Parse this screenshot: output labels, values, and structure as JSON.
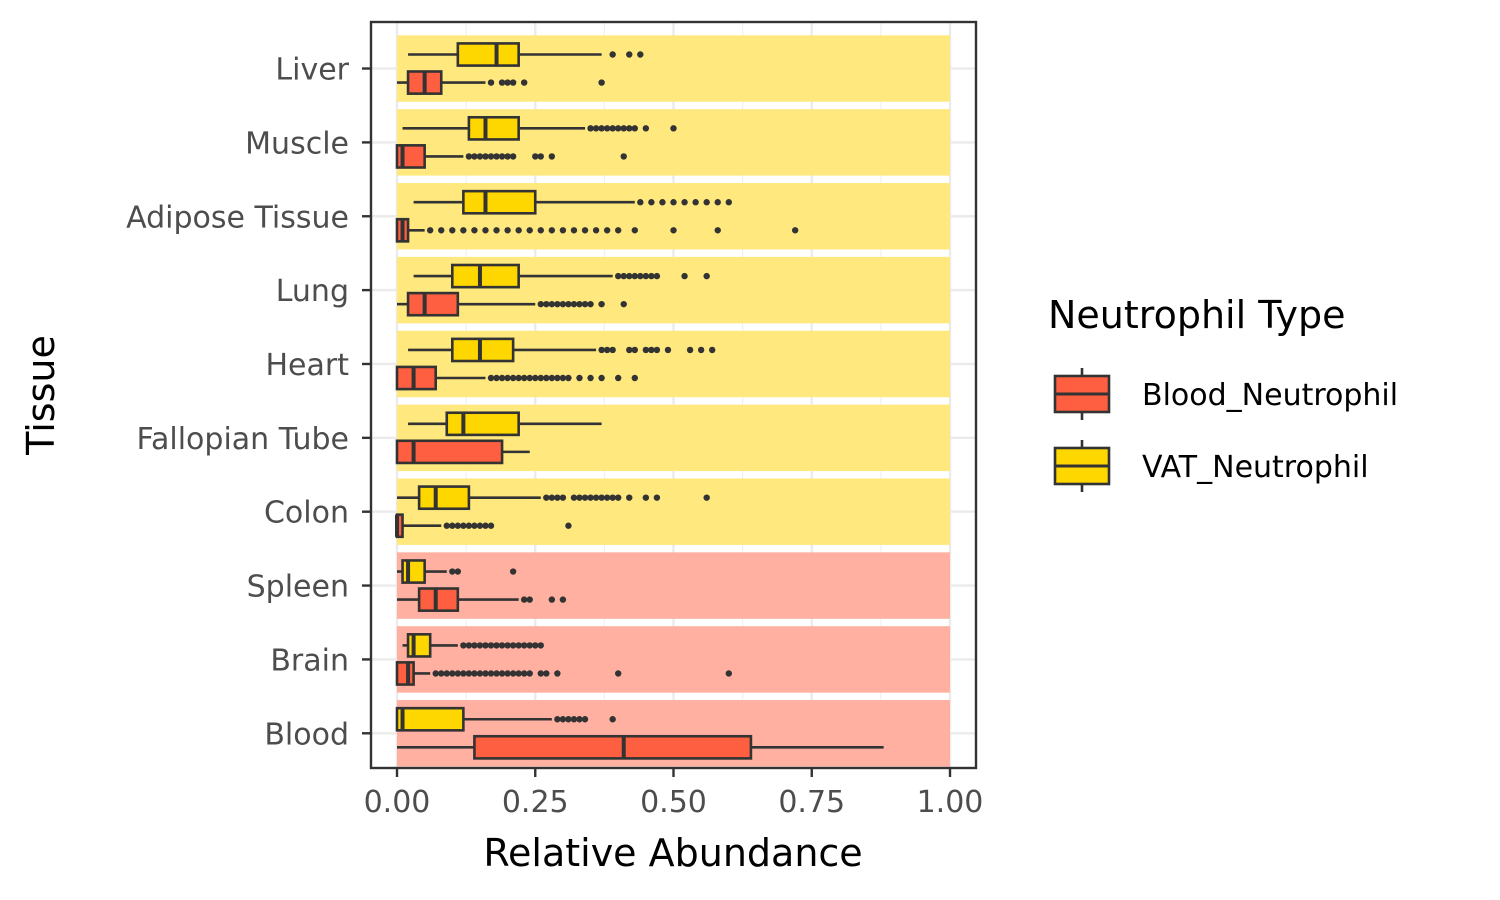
{
  "chart_data": {
    "type": "boxplot",
    "orientation": "horizontal",
    "xlabel": "Relative Abundance",
    "ylabel": "Tissue",
    "xlim": [
      0,
      1
    ],
    "xticks": [
      0,
      0.25,
      0.5,
      0.75,
      1
    ],
    "xtick_labels": [
      "0.00",
      "0.25",
      "0.50",
      "0.75",
      "1.00"
    ],
    "categories": [
      "Liver",
      "Muscle",
      "Adipose Tissue",
      "Lung",
      "Heart",
      "Fallopian Tube",
      "Colon",
      "Spleen",
      "Brain",
      "Blood"
    ],
    "category_band": [
      "VAT_Neutrophil",
      "VAT_Neutrophil",
      "VAT_Neutrophil",
      "VAT_Neutrophil",
      "VAT_Neutrophil",
      "VAT_Neutrophil",
      "VAT_Neutrophil",
      "Blood_Neutrophil",
      "Blood_Neutrophil",
      "Blood_Neutrophil"
    ],
    "band_x_range": [
      0,
      1
    ],
    "grid": true,
    "legend": {
      "title": "Neutrophil Type",
      "position": "right",
      "entries": [
        "Blood_Neutrophil",
        "VAT_Neutrophil"
      ]
    },
    "colors": {
      "Blood_Neutrophil": "#FF5F41",
      "VAT_Neutrophil": "#FFD700",
      "band_Blood_Neutrophil": "#FFB0A1",
      "band_VAT_Neutrophil": "#FFE97F"
    },
    "series": [
      {
        "name": "VAT_Neutrophil",
        "boxes": [
          {
            "category": "Liver",
            "whisker_low": 0.02,
            "q1": 0.11,
            "median": 0.18,
            "q3": 0.22,
            "whisker_high": 0.37,
            "outliers": [
              0.39,
              0.42,
              0.44
            ]
          },
          {
            "category": "Muscle",
            "whisker_low": 0.01,
            "q1": 0.13,
            "median": 0.16,
            "q3": 0.22,
            "whisker_high": 0.34,
            "outliers": [
              0.35,
              0.36,
              0.37,
              0.38,
              0.39,
              0.4,
              0.41,
              0.42,
              0.43,
              0.45,
              0.5
            ]
          },
          {
            "category": "Adipose Tissue",
            "whisker_low": 0.03,
            "q1": 0.12,
            "median": 0.16,
            "q3": 0.25,
            "whisker_high": 0.43,
            "outliers": [
              0.44,
              0.46,
              0.48,
              0.5,
              0.52,
              0.54,
              0.56,
              0.58,
              0.6
            ]
          },
          {
            "category": "Lung",
            "whisker_low": 0.03,
            "q1": 0.1,
            "median": 0.15,
            "q3": 0.22,
            "whisker_high": 0.39,
            "outliers": [
              0.4,
              0.41,
              0.42,
              0.43,
              0.44,
              0.45,
              0.46,
              0.47,
              0.52,
              0.56
            ]
          },
          {
            "category": "Heart",
            "whisker_low": 0.02,
            "q1": 0.1,
            "median": 0.15,
            "q3": 0.21,
            "whisker_high": 0.36,
            "outliers": [
              0.37,
              0.38,
              0.39,
              0.42,
              0.43,
              0.45,
              0.46,
              0.47,
              0.49,
              0.53,
              0.55,
              0.57
            ]
          },
          {
            "category": "Fallopian Tube",
            "whisker_low": 0.02,
            "q1": 0.09,
            "median": 0.12,
            "q3": 0.22,
            "whisker_high": 0.37,
            "outliers": []
          },
          {
            "category": "Colon",
            "whisker_low": 0.0,
            "q1": 0.04,
            "median": 0.07,
            "q3": 0.13,
            "whisker_high": 0.26,
            "outliers": [
              0.27,
              0.28,
              0.29,
              0.3,
              0.32,
              0.33,
              0.34,
              0.35,
              0.36,
              0.37,
              0.38,
              0.39,
              0.4,
              0.42,
              0.45,
              0.47,
              0.56
            ]
          },
          {
            "category": "Spleen",
            "whisker_low": 0.0,
            "q1": 0.01,
            "median": 0.02,
            "q3": 0.05,
            "whisker_high": 0.09,
            "outliers": [
              0.1,
              0.11,
              0.21
            ]
          },
          {
            "category": "Brain",
            "whisker_low": 0.01,
            "q1": 0.02,
            "median": 0.03,
            "q3": 0.06,
            "whisker_high": 0.11,
            "outliers": [
              0.12,
              0.13,
              0.14,
              0.15,
              0.16,
              0.17,
              0.18,
              0.19,
              0.2,
              0.21,
              0.22,
              0.23,
              0.24,
              0.25,
              0.26
            ]
          },
          {
            "category": "Blood",
            "whisker_low": 0.0,
            "q1": 0.0,
            "median": 0.01,
            "q3": 0.12,
            "whisker_high": 0.28,
            "outliers": [
              0.29,
              0.3,
              0.31,
              0.32,
              0.33,
              0.34,
              0.39
            ]
          }
        ]
      },
      {
        "name": "Blood_Neutrophil",
        "boxes": [
          {
            "category": "Liver",
            "whisker_low": 0.0,
            "q1": 0.02,
            "median": 0.05,
            "q3": 0.08,
            "whisker_high": 0.16,
            "outliers": [
              0.17,
              0.19,
              0.2,
              0.21,
              0.23,
              0.37
            ]
          },
          {
            "category": "Muscle",
            "whisker_low": 0.0,
            "q1": 0.0,
            "median": 0.01,
            "q3": 0.05,
            "whisker_high": 0.12,
            "outliers": [
              0.13,
              0.14,
              0.15,
              0.16,
              0.17,
              0.18,
              0.19,
              0.2,
              0.21,
              0.25,
              0.26,
              0.28,
              0.41
            ]
          },
          {
            "category": "Adipose Tissue",
            "whisker_low": 0.0,
            "q1": 0.0,
            "median": 0.01,
            "q3": 0.02,
            "whisker_high": 0.05,
            "outliers": [
              0.06,
              0.08,
              0.1,
              0.12,
              0.14,
              0.16,
              0.18,
              0.2,
              0.22,
              0.24,
              0.26,
              0.28,
              0.3,
              0.32,
              0.34,
              0.36,
              0.38,
              0.4,
              0.43,
              0.5,
              0.58,
              0.72
            ]
          },
          {
            "category": "Lung",
            "whisker_low": 0.0,
            "q1": 0.02,
            "median": 0.05,
            "q3": 0.11,
            "whisker_high": 0.25,
            "outliers": [
              0.26,
              0.27,
              0.28,
              0.29,
              0.3,
              0.31,
              0.32,
              0.33,
              0.34,
              0.35,
              0.37,
              0.41
            ]
          },
          {
            "category": "Heart",
            "whisker_low": 0.0,
            "q1": 0.0,
            "median": 0.03,
            "q3": 0.07,
            "whisker_high": 0.16,
            "outliers": [
              0.17,
              0.18,
              0.19,
              0.2,
              0.21,
              0.22,
              0.23,
              0.24,
              0.25,
              0.26,
              0.27,
              0.28,
              0.29,
              0.3,
              0.31,
              0.33,
              0.35,
              0.37,
              0.4,
              0.43
            ]
          },
          {
            "category": "Fallopian Tube",
            "whisker_low": 0.0,
            "q1": 0.0,
            "median": 0.03,
            "q3": 0.19,
            "whisker_high": 0.24,
            "outliers": []
          },
          {
            "category": "Colon",
            "whisker_low": 0.0,
            "q1": 0.0,
            "median": 0.0,
            "q3": 0.01,
            "whisker_high": 0.08,
            "outliers": [
              0.09,
              0.1,
              0.11,
              0.12,
              0.13,
              0.14,
              0.15,
              0.16,
              0.17,
              0.31
            ]
          },
          {
            "category": "Spleen",
            "whisker_low": 0.0,
            "q1": 0.04,
            "median": 0.07,
            "q3": 0.11,
            "whisker_high": 0.22,
            "outliers": [
              0.23,
              0.24,
              0.28,
              0.3
            ]
          },
          {
            "category": "Brain",
            "whisker_low": 0.0,
            "q1": 0.0,
            "median": 0.02,
            "q3": 0.03,
            "whisker_high": 0.06,
            "outliers": [
              0.07,
              0.08,
              0.09,
              0.1,
              0.11,
              0.12,
              0.13,
              0.14,
              0.15,
              0.16,
              0.17,
              0.18,
              0.19,
              0.2,
              0.21,
              0.22,
              0.23,
              0.24,
              0.26,
              0.27,
              0.29,
              0.4,
              0.6
            ]
          },
          {
            "category": "Blood",
            "whisker_low": 0.0,
            "q1": 0.14,
            "median": 0.41,
            "q3": 0.64,
            "whisker_high": 0.88,
            "outliers": []
          }
        ]
      }
    ]
  }
}
